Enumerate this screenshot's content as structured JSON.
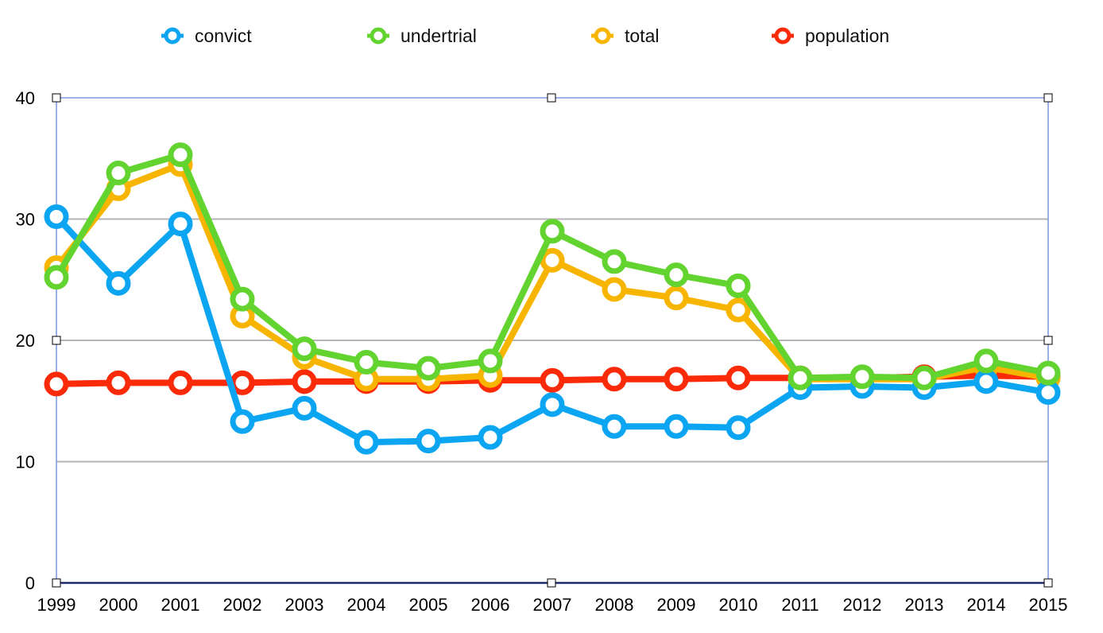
{
  "chart_data": {
    "type": "line",
    "title": "",
    "xlabel": "",
    "ylabel": "",
    "x": [
      "1999",
      "2000",
      "2001",
      "2002",
      "2003",
      "2004",
      "2005",
      "2006",
      "2007",
      "2008",
      "2009",
      "2010",
      "2011",
      "2012",
      "2013",
      "2014",
      "2015"
    ],
    "ylim": [
      0,
      40
    ],
    "yticks": [
      "0",
      "10",
      "20",
      "30",
      "40"
    ],
    "grid": true,
    "legend_position": "top",
    "series": [
      {
        "name": "convict",
        "color": "#0ba5f2",
        "values": [
          30.2,
          24.7,
          29.6,
          13.3,
          14.4,
          11.6,
          11.7,
          12.0,
          14.7,
          12.9,
          12.9,
          12.8,
          16.1,
          16.2,
          16.1,
          16.6,
          15.7
        ]
      },
      {
        "name": "undertrial",
        "color": "#63d42f",
        "values": [
          25.2,
          33.8,
          35.3,
          23.4,
          19.3,
          18.2,
          17.7,
          18.3,
          29.0,
          26.5,
          25.4,
          24.5,
          16.9,
          17.0,
          16.9,
          18.3,
          17.3
        ]
      },
      {
        "name": "total",
        "color": "#f7b500",
        "values": [
          26.0,
          32.5,
          34.5,
          22.0,
          18.6,
          16.8,
          16.8,
          17.1,
          26.6,
          24.2,
          23.5,
          22.5,
          16.8,
          16.8,
          16.8,
          17.8,
          16.9
        ]
      },
      {
        "name": "population",
        "color": "#fb2a08",
        "values": [
          16.4,
          16.5,
          16.5,
          16.5,
          16.6,
          16.6,
          16.6,
          16.7,
          16.7,
          16.8,
          16.8,
          16.9,
          16.9,
          16.9,
          17.0,
          17.1,
          17.0
        ]
      }
    ]
  },
  "colors": {
    "frame": "#7b96e0",
    "gridline": "#b4b4b4",
    "baseline": "#1f2a66"
  }
}
